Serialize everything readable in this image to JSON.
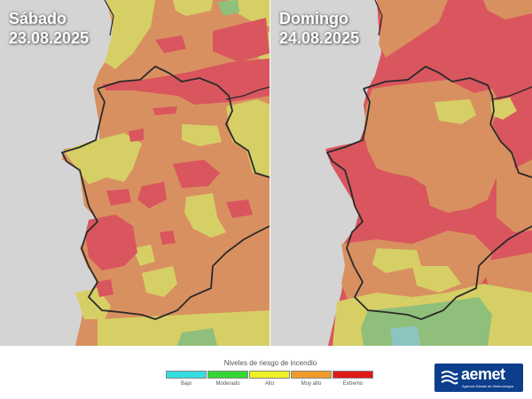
{
  "maps": {
    "left": {
      "day": "Sábado",
      "date": "23.08.2025"
    },
    "right": {
      "day": "Domingo",
      "date": "24.08.2025"
    }
  },
  "legend": {
    "title": "Niveles de riesgo de incendio",
    "levels": [
      {
        "label": "Bajo",
        "color": "#33dde0"
      },
      {
        "label": "Moderado",
        "color": "#33d633"
      },
      {
        "label": "Alto",
        "color": "#f0f022"
      },
      {
        "label": "Muy alto",
        "color": "#f09a28"
      },
      {
        "label": "Extremo",
        "color": "#e01818"
      }
    ]
  },
  "logo": {
    "name": "aemet",
    "subtitle": "Agencia Estatal de Meteorología"
  },
  "map_colors": {
    "background": "#d4d4d4",
    "bajo": "#8ec4c0",
    "moderado": "#8fbf7a",
    "alto": "#d6cf66",
    "muy_alto": "#d99060",
    "extremo": "#d9565e",
    "border": "#2a2a2a"
  }
}
